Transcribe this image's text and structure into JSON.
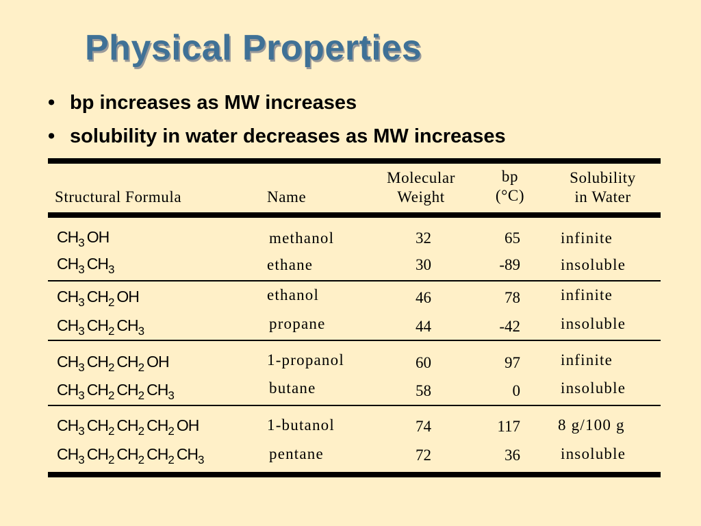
{
  "title": "Physical Properties",
  "bullets": [
    "bp increases as MW increases",
    "solubility in water decreases as MW increases"
  ],
  "table": {
    "headers": {
      "formula": "Structural Formula",
      "name": "Name",
      "mw_line1": "Molecular",
      "mw_line2": "Weight",
      "bp_line1": "bp",
      "bp_line2": "(°C)",
      "sol_line1": "Solubility",
      "sol_line2": "in Water"
    },
    "rows": [
      {
        "formula": [
          [
            "CH",
            "3"
          ],
          [
            "OH",
            ""
          ]
        ],
        "name": "methanol",
        "mw": "32",
        "bp": "65",
        "solubility": "infinite"
      },
      {
        "formula": [
          [
            "CH",
            "3"
          ],
          [
            "CH",
            "3"
          ]
        ],
        "name": "ethane",
        "mw": "30",
        "bp": "-89",
        "solubility": "insoluble"
      },
      {
        "formula": [
          [
            "CH",
            "3"
          ],
          [
            "CH",
            "2"
          ],
          [
            "OH",
            ""
          ]
        ],
        "name": "ethanol",
        "mw": "46",
        "bp": "78",
        "solubility": "infinite"
      },
      {
        "formula": [
          [
            "CH",
            "3"
          ],
          [
            "CH",
            "2"
          ],
          [
            "CH",
            "3"
          ]
        ],
        "name": "propane",
        "mw": "44",
        "bp": "-42",
        "solubility": "insoluble"
      },
      {
        "formula": [
          [
            "CH",
            "3"
          ],
          [
            "CH",
            "2"
          ],
          [
            "CH",
            "2"
          ],
          [
            "OH",
            ""
          ]
        ],
        "name": "1-propanol",
        "mw": "60",
        "bp": "97",
        "solubility": "infinite"
      },
      {
        "formula": [
          [
            "CH",
            "3"
          ],
          [
            "CH",
            "2"
          ],
          [
            "CH",
            "2"
          ],
          [
            "CH",
            "3"
          ]
        ],
        "name": "butane",
        "mw": "58",
        "bp": "0",
        "solubility": "insoluble"
      },
      {
        "formula": [
          [
            "CH",
            "3"
          ],
          [
            "CH",
            "2"
          ],
          [
            "CH",
            "2"
          ],
          [
            "CH",
            "2"
          ],
          [
            "OH",
            ""
          ]
        ],
        "name": "1-butanol",
        "mw": "74",
        "bp": "117",
        "solubility": "8 g/100 g"
      },
      {
        "formula": [
          [
            "CH",
            "3"
          ],
          [
            "CH",
            "2"
          ],
          [
            "CH",
            "2"
          ],
          [
            "CH",
            "2"
          ],
          [
            "CH",
            "3"
          ]
        ],
        "name": "pentane",
        "mw": "72",
        "bp": "36",
        "solubility": "insoluble"
      }
    ]
  }
}
